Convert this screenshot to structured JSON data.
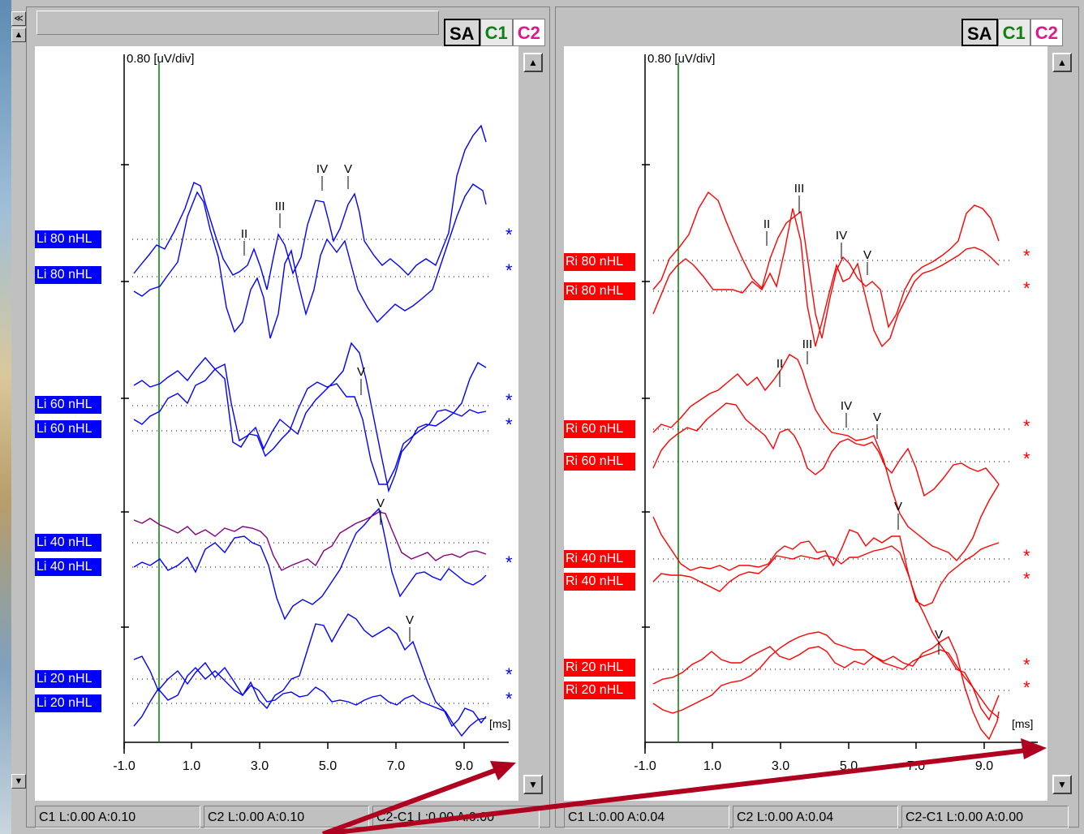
{
  "colors": {
    "left_trace": "#0000ff",
    "left_trace_alt": "#800080",
    "right_trace": "#ff0000",
    "cursor": "#008000",
    "arrow": "#b00020"
  },
  "left": {
    "tabs": [
      "SA",
      "C1",
      "C2"
    ],
    "scale_label": "0.80 [uV/div]",
    "unit_label": "[ms]",
    "x_ticks": [
      "-1.0",
      "1.0",
      "3.0",
      "5.0",
      "7.0",
      "9.0"
    ],
    "labels": [
      "Li 80 nHL",
      "Li 80 nHL",
      "Li 60 nHL",
      "Li 60 nHL",
      "Li 40 nHL",
      "Li 40 nHL",
      "Li 20 nHL",
      "Li 20 nHL"
    ],
    "stars": [
      "*",
      "*",
      "*",
      "*",
      "*",
      "*",
      "*"
    ],
    "peaks": [
      "II",
      "III",
      "IV",
      "V",
      "V",
      "V",
      "V"
    ],
    "status": [
      "C1 L:0.00 A:0.10",
      "C2 L:0.00 A:0.10",
      "C2-C1 L:0.00 A:0.00"
    ]
  },
  "right": {
    "tabs": [
      "SA",
      "C1",
      "C2"
    ],
    "scale_label": "0.80 [uV/div]",
    "unit_label": "[ms]",
    "x_ticks": [
      "-1.0",
      "1.0",
      "3.0",
      "5.0",
      "7.0",
      "9.0"
    ],
    "labels": [
      "Ri 80 nHL",
      "Ri 80 nHL",
      "Ri 60 nHL",
      "Ri 60 nHL",
      "Ri 40 nHL",
      "Ri 40 nHL",
      "Ri 20 nHL",
      "Ri 20 nHL"
    ],
    "stars": [
      "*",
      "*",
      "*",
      "*",
      "*",
      "*",
      "*",
      "*"
    ],
    "peaks": [
      "II",
      "III",
      "IV",
      "V",
      "II",
      "III",
      "IV",
      "V",
      "V",
      "V"
    ],
    "status": [
      "C1 L:0.00 A:0.04",
      "C2 L:0.00 A:0.04",
      "C2-C1 L:0.00 A:0.00"
    ]
  }
}
